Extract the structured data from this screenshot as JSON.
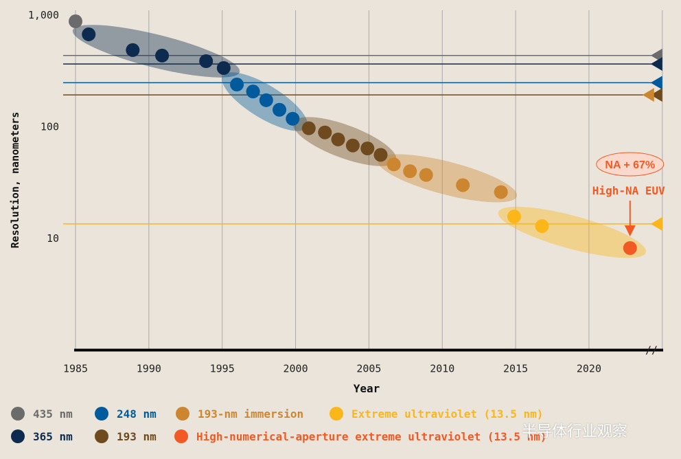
{
  "chart_data": {
    "type": "scatter",
    "xlabel": "Year",
    "ylabel": "Resolution, nanometers",
    "xlim": [
      1985,
      2025
    ],
    "ylim": [
      1,
      1000
    ],
    "yscale": "log",
    "xticks": [
      1985,
      1990,
      1995,
      2000,
      2005,
      2010,
      2015,
      2020
    ],
    "yticks": [
      {
        "v": 1000,
        "label": "1,000"
      },
      {
        "v": 100,
        "label": "100"
      },
      {
        "v": 10,
        "label": "10"
      }
    ],
    "grid": "vertical",
    "legend_placement": "bottom",
    "series": [
      {
        "name": "435 nm",
        "color": "#6b6b6b",
        "wavelength": 435,
        "points": [
          [
            1985,
            880
          ]
        ]
      },
      {
        "name": "365 nm",
        "color": "#0d2b4e",
        "wavelength": 365,
        "points": [
          [
            1985.9,
            673
          ],
          [
            1988.9,
            486
          ],
          [
            1990.9,
            434
          ],
          [
            1993.9,
            387
          ],
          [
            1995.1,
            336
          ]
        ]
      },
      {
        "name": "248 nm",
        "color": "#005a9c",
        "wavelength": 248,
        "points": [
          [
            1996,
            239
          ],
          [
            1997.1,
            207
          ],
          [
            1998,
            173
          ],
          [
            1998.9,
            142
          ],
          [
            1999.8,
            118
          ]
        ]
      },
      {
        "name": "193 nm",
        "color": "#6f4a1e",
        "wavelength": 193,
        "points": [
          [
            2000.9,
            97
          ],
          [
            2002,
            89
          ],
          [
            2002.9,
            77
          ],
          [
            2003.9,
            68
          ],
          [
            2004.9,
            64
          ],
          [
            2005.8,
            56
          ]
        ]
      },
      {
        "name": "193-nm immersion",
        "color": "#cd8630",
        "wavelength": 193,
        "points": [
          [
            2006.7,
            46
          ],
          [
            2007.8,
            40
          ],
          [
            2008.9,
            37
          ],
          [
            2011.4,
            30
          ],
          [
            2014,
            26
          ]
        ]
      },
      {
        "name": "Extreme ultraviolet (13.5 nm)",
        "color": "#fbb619",
        "wavelength": 13.5,
        "points": [
          [
            2014.9,
            15.7
          ],
          [
            2016.8,
            12.9
          ]
        ]
      },
      {
        "name": "High-numerical-aperture extreme ultraviolet (13.5 nm)",
        "color": "#f15a24",
        "wavelength": 13.5,
        "points": [
          [
            2022.8,
            8.2
          ]
        ]
      }
    ],
    "annotations": {
      "badge": "NA + 67%",
      "label": "High-NA EUV"
    }
  },
  "watermark": "半导体行业观察"
}
